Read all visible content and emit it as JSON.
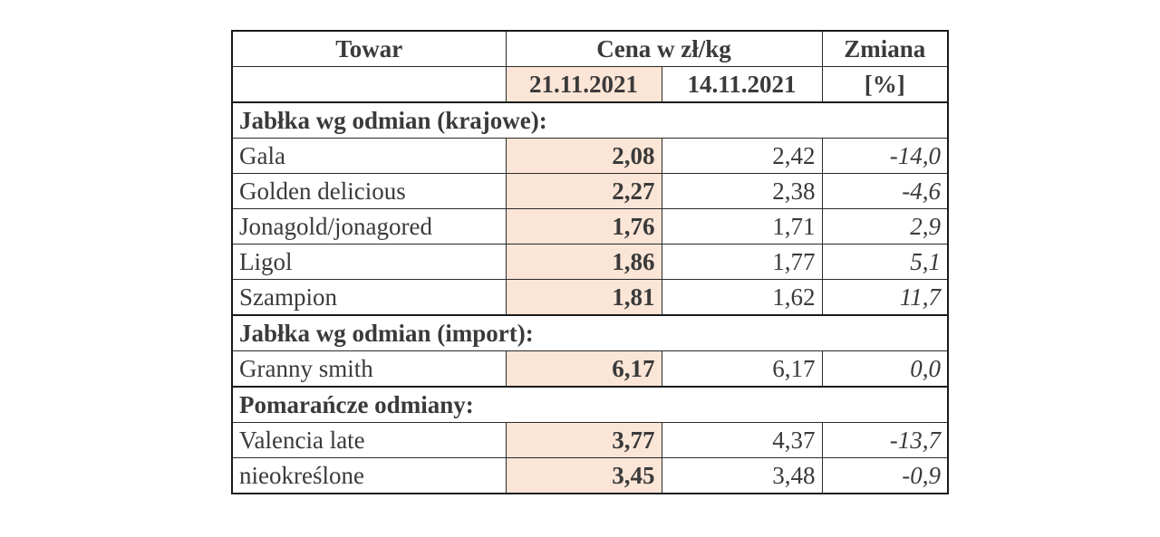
{
  "header": {
    "col_product": "Towar",
    "col_price_group": "Cena w zł/kg",
    "col_change": "Zmiana",
    "col_change_unit": "[%]",
    "date_current": "21.11.2021",
    "date_previous": "14.11.2021"
  },
  "sections": [
    {
      "title": "Jabłka wg odmian (krajowe):",
      "rows": [
        {
          "name": "Gala",
          "current": "2,08",
          "previous": "2,42",
          "change": "-14,0"
        },
        {
          "name": "Golden delicious",
          "current": "2,27",
          "previous": "2,38",
          "change": "-4,6"
        },
        {
          "name": "Jonagold/jonagored",
          "current": "1,76",
          "previous": "1,71",
          "change": "2,9"
        },
        {
          "name": "Ligol",
          "current": "1,86",
          "previous": "1,77",
          "change": "5,1"
        },
        {
          "name": "Szampion",
          "current": "1,81",
          "previous": "1,62",
          "change": "11,7"
        }
      ]
    },
    {
      "title": "Jabłka wg odmian (import):",
      "rows": [
        {
          "name": "Granny smith",
          "current": "6,17",
          "previous": "6,17",
          "change": "0,0"
        }
      ]
    },
    {
      "title": "Pomarańcze odmiany:",
      "rows": [
        {
          "name": "Valencia late",
          "current": "3,77",
          "previous": "4,37",
          "change": "-13,7"
        },
        {
          "name": "nieokreślone",
          "current": "3,45",
          "previous": "3,48",
          "change": "-0,9"
        }
      ]
    }
  ],
  "colors": {
    "highlight": "#fbe5d6",
    "border": "#1a1a1a",
    "text": "#3a3a3a"
  }
}
